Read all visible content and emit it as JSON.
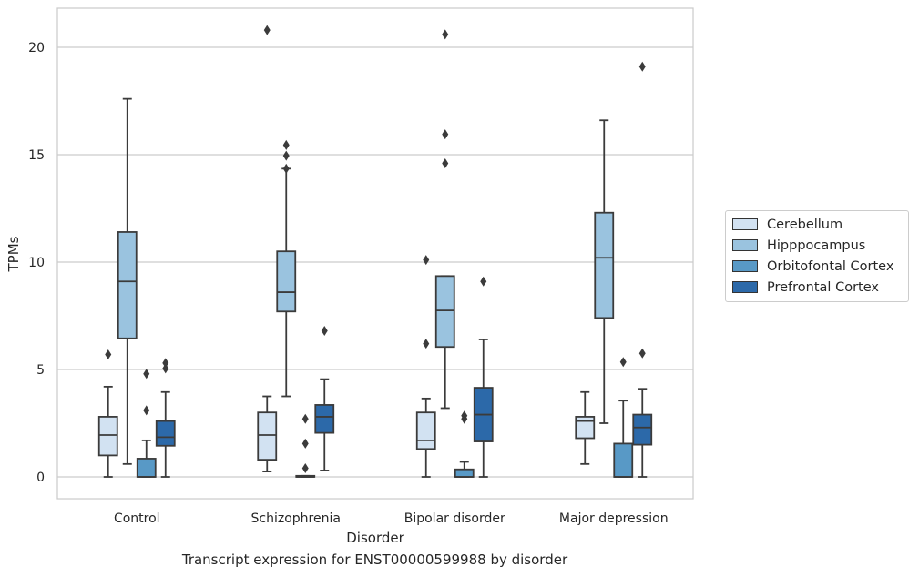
{
  "chart_data": {
    "type": "box",
    "title": "",
    "caption": "Transcript expression for ENST00000599988 by disorder",
    "xlabel": "Disorder",
    "ylabel": "TPMs",
    "ylim": [
      -1,
      21.8
    ],
    "yticks": [
      0,
      5,
      10,
      15,
      20
    ],
    "grid": "horizontal",
    "legend_position": "right",
    "categories": [
      "Control",
      "Schizophrenia",
      "Bipolar disorder",
      "Major depression"
    ],
    "series": [
      {
        "name": "Cerebellum",
        "color": "#d2e2f2",
        "boxes": [
          {
            "whisker_low": 0,
            "q1": 1.0,
            "median": 1.95,
            "q3": 2.8,
            "whisker_high": 4.2,
            "fliers": [
              5.7
            ]
          },
          {
            "whisker_low": 0.25,
            "q1": 0.8,
            "median": 1.95,
            "q3": 3.0,
            "whisker_high": 3.75,
            "fliers": [
              20.8
            ]
          },
          {
            "whisker_low": 0,
            "q1": 1.3,
            "median": 1.7,
            "q3": 3.0,
            "whisker_high": 3.65,
            "fliers": [
              6.2,
              10.1
            ]
          },
          {
            "whisker_low": 0.6,
            "q1": 1.8,
            "median": 2.6,
            "q3": 2.8,
            "whisker_high": 3.95,
            "fliers": []
          }
        ]
      },
      {
        "name": "Hipppocampus",
        "color": "#9ac3df",
        "boxes": [
          {
            "whisker_low": 0.6,
            "q1": 6.45,
            "median": 9.1,
            "q3": 11.4,
            "whisker_high": 17.6,
            "fliers": []
          },
          {
            "whisker_low": 3.75,
            "q1": 7.7,
            "median": 8.6,
            "q3": 10.5,
            "whisker_high": 14.35,
            "fliers": [
              14.35,
              14.95,
              15.45
            ]
          },
          {
            "whisker_low": 3.2,
            "q1": 6.05,
            "median": 7.75,
            "q3": 9.35,
            "whisker_high": 9.35,
            "fliers": [
              14.6,
              15.95,
              20.6
            ]
          },
          {
            "whisker_low": 2.5,
            "q1": 7.4,
            "median": 10.2,
            "q3": 12.3,
            "whisker_high": 16.6,
            "fliers": []
          }
        ]
      },
      {
        "name": "Orbitofontal Cortex",
        "color": "#5899c6",
        "boxes": [
          {
            "whisker_low": 0,
            "q1": 0,
            "median": 0,
            "q3": 0.85,
            "whisker_high": 1.7,
            "fliers": [
              3.1,
              4.8
            ]
          },
          {
            "whisker_low": 0,
            "q1": 0,
            "median": 0,
            "q3": 0.05,
            "whisker_high": 0.05,
            "fliers": [
              0.4,
              1.55,
              2.7
            ]
          },
          {
            "whisker_low": 0,
            "q1": 0,
            "median": 0,
            "q3": 0.35,
            "whisker_high": 0.7,
            "fliers": [
              2.7,
              2.85
            ]
          },
          {
            "whisker_low": 0,
            "q1": 0,
            "median": 0,
            "q3": 1.55,
            "whisker_high": 3.55,
            "fliers": [
              5.35
            ]
          }
        ]
      },
      {
        "name": "Prefrontal Cortex",
        "color": "#2c69a9",
        "boxes": [
          {
            "whisker_low": 0,
            "q1": 1.45,
            "median": 1.85,
            "q3": 2.6,
            "whisker_high": 3.95,
            "fliers": [
              5.05,
              5.3
            ]
          },
          {
            "whisker_low": 0.3,
            "q1": 2.05,
            "median": 2.8,
            "q3": 3.35,
            "whisker_high": 4.55,
            "fliers": [
              6.8
            ]
          },
          {
            "whisker_low": 0,
            "q1": 1.65,
            "median": 2.9,
            "q3": 4.15,
            "whisker_high": 6.4,
            "fliers": [
              9.1
            ]
          },
          {
            "whisker_low": 0,
            "q1": 1.5,
            "median": 2.3,
            "q3": 2.9,
            "whisker_high": 4.1,
            "fliers": [
              5.75,
              19.1
            ]
          }
        ]
      }
    ]
  }
}
